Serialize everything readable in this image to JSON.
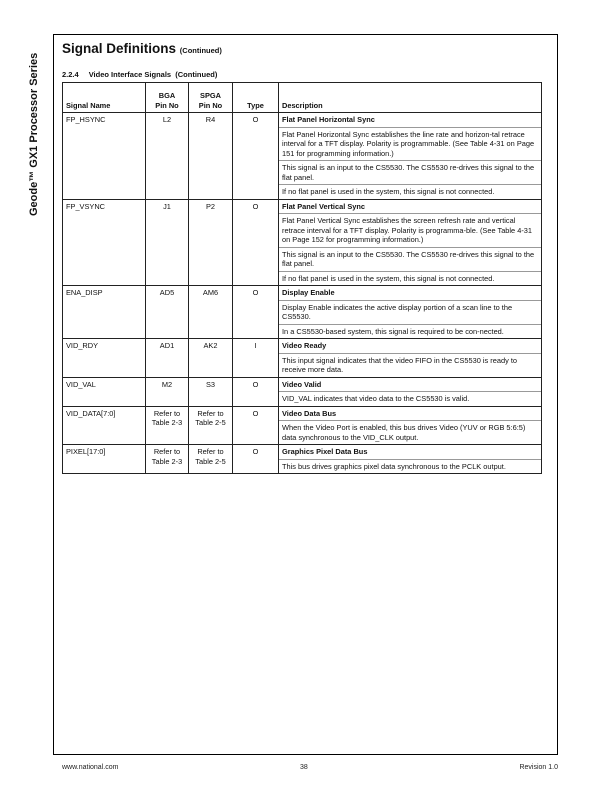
{
  "side_title": "Geode™ GX1 Processor Series",
  "title": "Signal Definitions",
  "title_suffix": "(Continued)",
  "section": {
    "number": "2.2.4",
    "label": "Video Interface Signals  (Continued)"
  },
  "table": {
    "headers": [
      "Signal Name",
      "BGA\nPin No",
      "SPGA\nPin No",
      "Type",
      "Description"
    ],
    "rows": [
      {
        "name": "FP_HSYNC",
        "bga": "L2",
        "spga": "R4",
        "type": "O",
        "desc": [
          "Flat Panel Horizontal Sync",
          "Flat Panel Horizontal Sync establishes the line rate and horizon-tal retrace interval for a TFT display. Polarity is programmable. (See Table 4-31 on Page 151 for programming information.)",
          "This signal is an input to the CS5530. The CS5530 re-drives this signal to the flat panel.",
          "If no flat panel is used in the system, this signal is not connected."
        ]
      },
      {
        "name": "FP_VSYNC",
        "bga": "J1",
        "spga": "P2",
        "type": "O",
        "desc": [
          "Flat Panel Vertical Sync",
          "Flat Panel Vertical Sync establishes the screen refresh rate and vertical retrace interval for a TFT display. Polarity is programma-ble. (See Table 4-31 on Page 152 for programming information.)",
          "This signal is an input to the CS5530. The CS5530 re-drives this signal to the flat panel.",
          "If no flat panel is used in the system, this signal is not connected."
        ]
      },
      {
        "name": "ENA_DISP",
        "bga": "AD5",
        "spga": "AM6",
        "type": "O",
        "desc": [
          "Display Enable",
          "Display Enable indicates the active display portion of a scan line to the CS5530.",
          "In a CS5530-based system, this signal is required to be con-nected."
        ]
      },
      {
        "name": "VID_RDY",
        "bga": "AD1",
        "spga": "AK2",
        "type": "I",
        "desc": [
          "Video Ready",
          "This input signal indicates that the video FIFO in the CS5530 is ready to receive more data."
        ]
      },
      {
        "name": "VID_VAL",
        "bga": "M2",
        "spga": "S3",
        "type": "O",
        "desc": [
          "Video Valid",
          "VID_VAL indicates that video data to the CS5530 is valid."
        ]
      },
      {
        "name": "VID_DATA[7:0]",
        "bga": "Refer to Table 2-3",
        "spga": "Refer to Table 2-5",
        "type": "O",
        "desc": [
          "Video Data Bus",
          "When the Video Port is enabled, this bus drives Video (YUV or RGB 5:6:5) data synchronous to the VID_CLK output."
        ]
      },
      {
        "name": "PIXEL[17:0]",
        "bga": "Refer to Table 2-3",
        "spga": "Refer to Table 2-5",
        "type": "O",
        "desc": [
          "Graphics Pixel Data Bus",
          "This bus drives graphics pixel data synchronous to the PCLK output."
        ]
      }
    ]
  },
  "footer": {
    "left": "www.national.com",
    "center": "38",
    "right": "Revision 1.0"
  }
}
